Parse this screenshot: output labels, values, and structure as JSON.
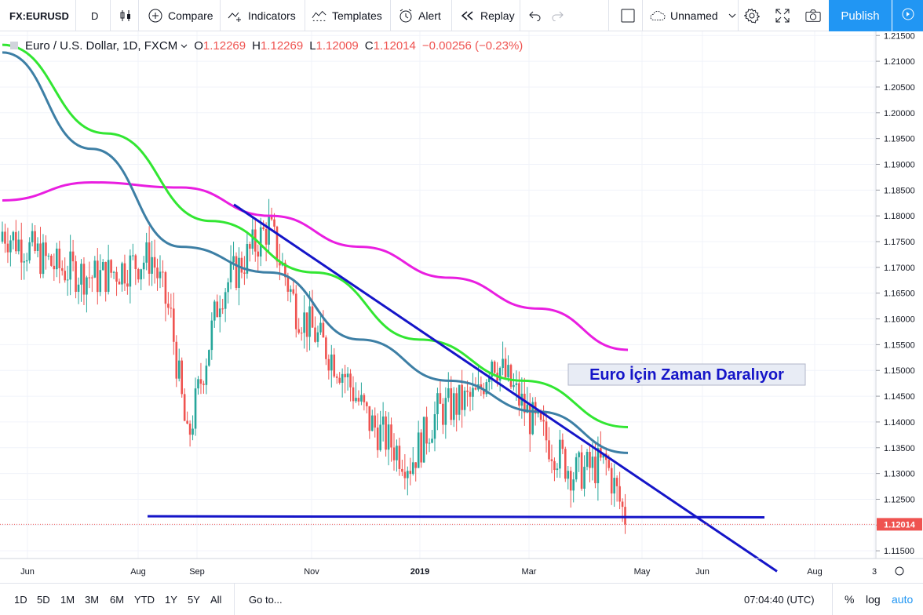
{
  "toolbar": {
    "symbol": "FX:EURUSD",
    "interval": "D",
    "compare": "Compare",
    "indicators": "Indicators",
    "templates": "Templates",
    "alert": "Alert",
    "replay": "Replay",
    "layout_name": "Unnamed",
    "publish": "Publish"
  },
  "legend": {
    "title": "Euro / U.S. Dollar, 1D, FXCM",
    "open_label": "O",
    "open": "1.12269",
    "high_label": "H",
    "high": "1.12269",
    "low_label": "L",
    "low": "1.12009",
    "close_label": "C",
    "close": "1.12014",
    "change": "−0.00256 (−0.23%)"
  },
  "chart_data": {
    "type": "candlestick",
    "symbol": "EURUSD",
    "timeframe": "1D",
    "ylim": [
      1.1135,
      1.2158
    ],
    "y_ticks": [
      "1.21500",
      "1.21000",
      "1.20500",
      "1.20000",
      "1.19500",
      "1.19000",
      "1.18500",
      "1.18000",
      "1.17500",
      "1.17000",
      "1.16500",
      "1.16000",
      "1.15500",
      "1.15000",
      "1.14500",
      "1.14000",
      "1.13500",
      "1.13000",
      "1.12500",
      "1.12000",
      "1.11500"
    ],
    "x_ticks": [
      "Jun",
      "Aug",
      "Sep",
      "Nov",
      "2019",
      "Mar",
      "May",
      "Jun",
      "Aug",
      "3"
    ],
    "last_price": "1.12014",
    "last_price_value": 1.12014,
    "annotation": "Euro İçin Zaman Daralıyor",
    "trendlines": [
      {
        "color": "#1515c8",
        "points": [
          [
            1.1822,
            1.1822
          ],
          [
            1.1822,
            1.111
          ]
        ]
      },
      {
        "color": "#1515c8",
        "points": [
          [
            1.1217,
            1.1217
          ],
          [
            1.1217,
            1.1215
          ]
        ]
      }
    ],
    "moving_averages": [
      {
        "color": "#e91ee0",
        "values": [
          1.183,
          1.1865,
          1.1855,
          1.18,
          1.174,
          1.168,
          1.162,
          1.154
        ]
      },
      {
        "color": "#32e632",
        "values": [
          1.2132,
          1.196,
          1.179,
          1.169,
          1.156,
          1.148,
          1.139
        ]
      },
      {
        "color": "#3d7fa5",
        "values": [
          1.2117,
          1.193,
          1.174,
          1.169,
          1.156,
          1.148,
          1.142,
          1.134
        ]
      }
    ],
    "start_price": 1.175,
    "end_price": 1.12014
  },
  "bottombar": {
    "ranges": [
      "1D",
      "5D",
      "1M",
      "3M",
      "6M",
      "YTD",
      "1Y",
      "5Y",
      "All"
    ],
    "goto": "Go to...",
    "time": "07:04:40 (UTC)",
    "percent": "%",
    "log": "log",
    "auto": "auto"
  },
  "colors": {
    "up": "#26a69a",
    "down": "#ef5350",
    "accent": "#2196f3"
  }
}
